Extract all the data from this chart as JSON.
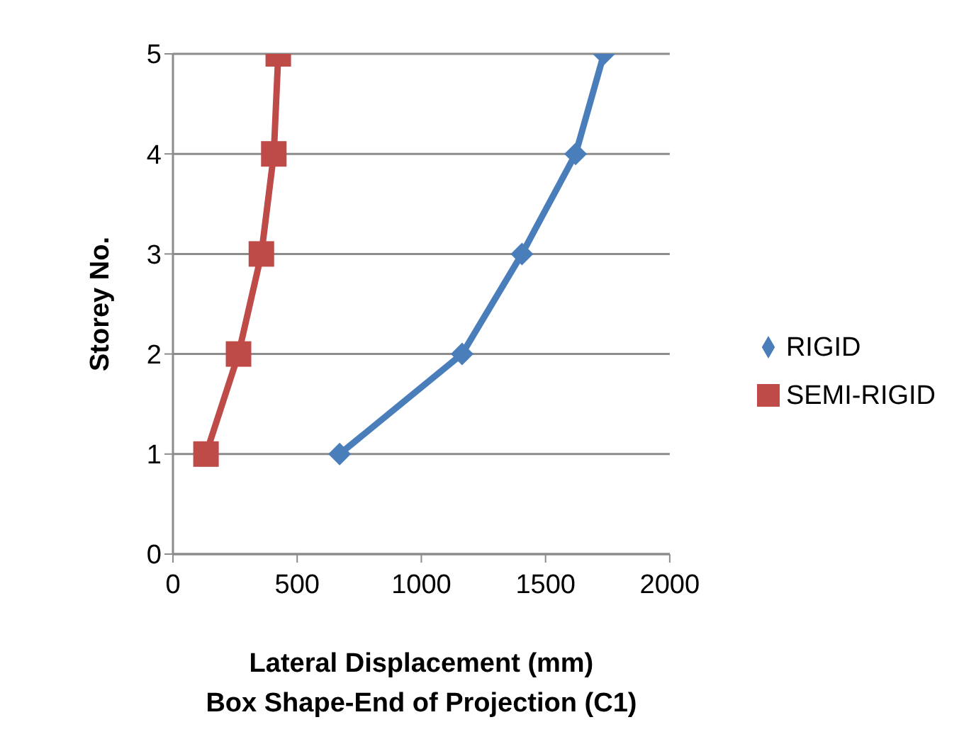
{
  "chart_data": {
    "type": "line",
    "xlabel": "Lateral Displacement (mm)\nBox Shape-End of Projection (C1)",
    "ylabel": "Storey No.",
    "xlim": [
      0,
      2000
    ],
    "xticks": [
      0,
      500,
      1000,
      1500,
      2000
    ],
    "ylim": [
      0,
      5
    ],
    "yticks": [
      0,
      1,
      2,
      3,
      4,
      5
    ],
    "grid": "y",
    "legend": "right",
    "series": [
      {
        "name": "RIGID",
        "color": "#4a7ebb",
        "marker": "diamond",
        "x": [
          671,
          1164,
          1405,
          1621,
          1735
        ],
        "values": [
          1,
          2,
          3,
          4,
          5
        ]
      },
      {
        "name": "SEMI-RIGID",
        "color": "#be4b48",
        "marker": "square",
        "x": [
          133,
          264,
          356,
          406,
          424
        ],
        "values": [
          1,
          2,
          3,
          4,
          5
        ]
      }
    ]
  }
}
